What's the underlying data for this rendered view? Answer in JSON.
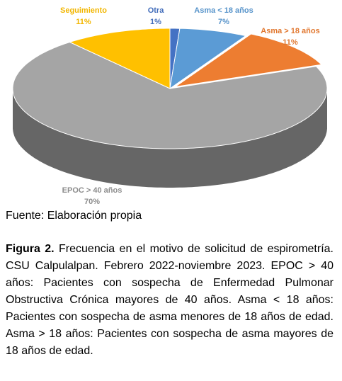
{
  "chart_data": {
    "type": "pie3d",
    "categories": [
      "Otra",
      "Asma < 18 años",
      "Asma > 18 años",
      "EPOC > 40 años",
      "Seguimiento"
    ],
    "values": [
      1,
      7,
      11,
      70,
      11
    ],
    "value_labels": [
      "1%",
      "7%",
      "11%",
      "70%",
      "11%"
    ],
    "colors": [
      "#4472c4",
      "#5b9bd5",
      "#ed7d31",
      "#a5a5a5",
      "#ffc000"
    ]
  },
  "source": "Fuente: Elaboración propia",
  "caption_label": "Figura 2.",
  "caption_text": "Frecuencia en el motivo de solicitud de espirometría. CSU Calpulalpan. Febrero 2022-noviembre 2023. EPOC > 40 años: Pacientes con sospecha de Enfermedad Pulmonar Obstructiva Crónica mayores de 40 años. Asma < 18 años: Pacientes con sospecha de asma menores de 18 años de edad. Asma > 18 años: Pacientes con sospecha de asma mayores de 18 años de edad."
}
